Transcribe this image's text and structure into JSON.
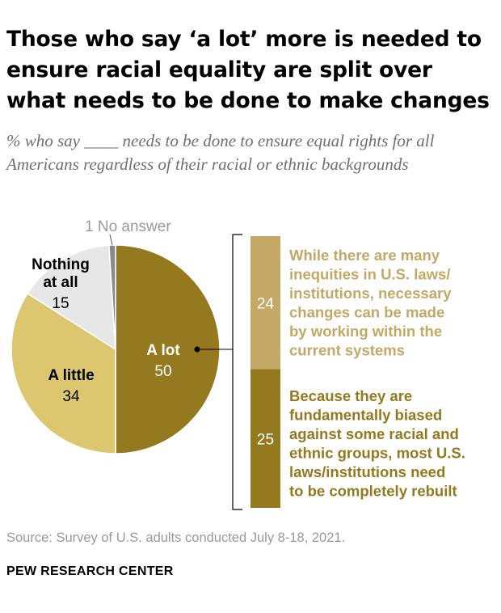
{
  "title": "Those who say ‘a lot’ more is needed to ensure racial equality are split over what needs to be done to make changes",
  "subtitle": "% who say ____ needs to be done to ensure equal rights for all Americans regardless of their racial or ethnic backgrounds",
  "chart_data": [
    {
      "type": "pie",
      "slices": [
        {
          "label": "A lot",
          "value": 50,
          "color": "#94791f"
        },
        {
          "label": "A little",
          "value": 34,
          "color": "#dcc66f"
        },
        {
          "label": "Nothing at all",
          "value": 15,
          "color": "#e7e7e7"
        },
        {
          "label": "No answer",
          "value": 1,
          "color": "#8a8a8a"
        }
      ]
    },
    {
      "type": "bar",
      "orientation": "stacked-vertical",
      "segments": [
        {
          "value": 24,
          "label": "While there are many inequities in U.S. laws/ institutions, necessary changes can be made by working within the current systems",
          "color": "#c3a866"
        },
        {
          "value": 25,
          "label": "Because they are fundamentally biased against some racial and ethnic groups, most U.S. laws/institutions need to be completely rebuilt",
          "color": "#94791f"
        }
      ]
    }
  ],
  "source": "Source: Survey of U.S. adults conducted July 8-18, 2021.",
  "organization": "PEW RESEARCH CENTER"
}
